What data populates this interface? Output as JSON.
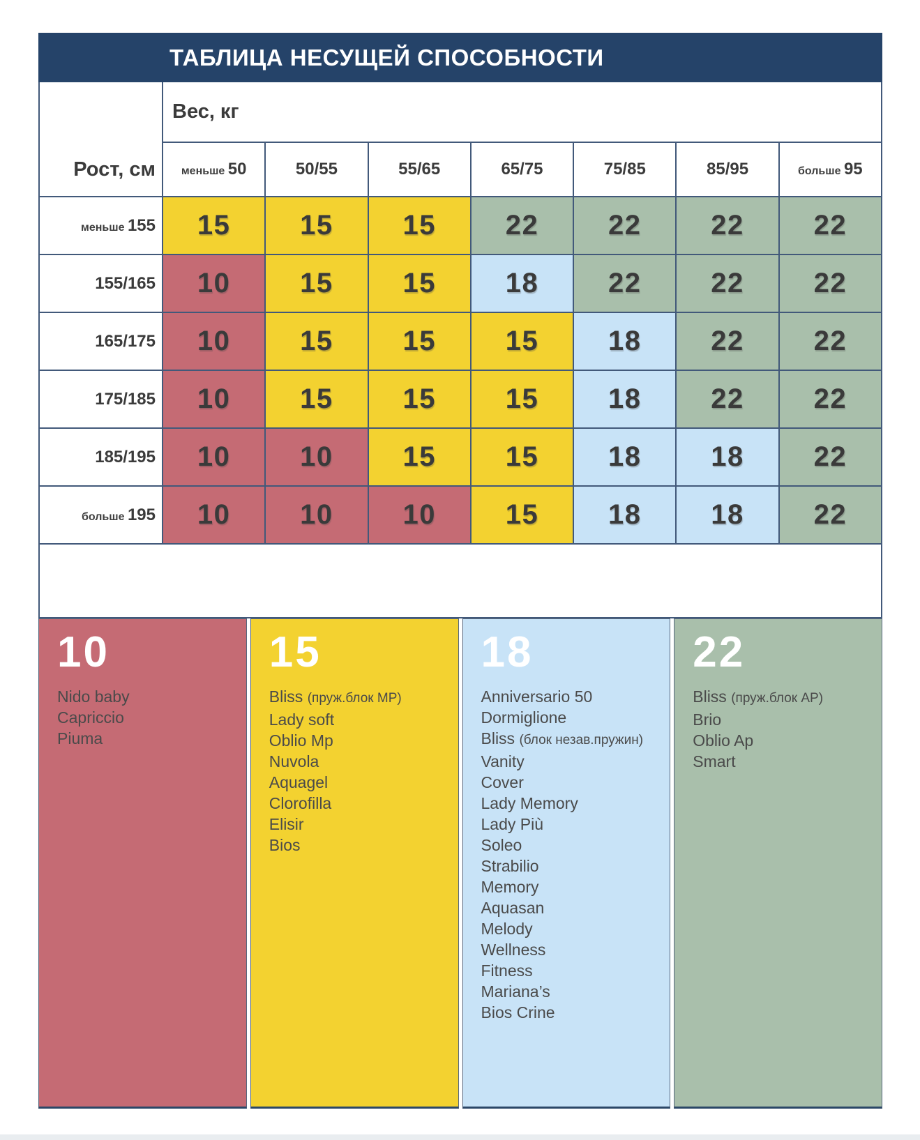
{
  "title": "ТАБЛИЦА НЕСУЩЕЙ СПОСОБНОСТИ",
  "weight_header": "Вес, кг",
  "height_header": "Рост, см",
  "weight_columns": [
    {
      "prefix": "меньше",
      "value": "50"
    },
    {
      "prefix": "",
      "value": "50/55"
    },
    {
      "prefix": "",
      "value": "55/65"
    },
    {
      "prefix": "",
      "value": "65/75"
    },
    {
      "prefix": "",
      "value": "75/85"
    },
    {
      "prefix": "",
      "value": "85/95"
    },
    {
      "prefix": "больше",
      "value": "95"
    }
  ],
  "height_rows": [
    {
      "prefix": "меньше",
      "value": "155",
      "cells": [
        "15",
        "15",
        "15",
        "22",
        "22",
        "22",
        "22"
      ]
    },
    {
      "prefix": "",
      "value": "155/165",
      "cells": [
        "10",
        "15",
        "15",
        "18",
        "22",
        "22",
        "22"
      ]
    },
    {
      "prefix": "",
      "value": "165/175",
      "cells": [
        "10",
        "15",
        "15",
        "15",
        "18",
        "22",
        "22"
      ]
    },
    {
      "prefix": "",
      "value": "175/185",
      "cells": [
        "10",
        "15",
        "15",
        "15",
        "18",
        "22",
        "22"
      ]
    },
    {
      "prefix": "",
      "value": "185/195",
      "cells": [
        "10",
        "10",
        "15",
        "15",
        "18",
        "18",
        "22"
      ]
    },
    {
      "prefix": "больше",
      "value": "195",
      "cells": [
        "10",
        "10",
        "10",
        "15",
        "18",
        "18",
        "22"
      ]
    }
  ],
  "value_colors": {
    "10": "#c56b74",
    "15": "#f3d230",
    "18": "#c8e3f7",
    "22": "#a9bfab"
  },
  "header_color": "#254369",
  "border_color": "#42597a",
  "legend": [
    {
      "value": "10",
      "color": "#c56b74",
      "items": [
        {
          "name": "Nido baby"
        },
        {
          "name": "Capriccio"
        },
        {
          "name": "Piuma"
        }
      ]
    },
    {
      "value": "15",
      "color": "#f3d230",
      "items": [
        {
          "name": "Bliss",
          "note": "(пруж.блок MP)"
        },
        {
          "name": "Lady soft"
        },
        {
          "name": "Oblio Mp"
        },
        {
          "name": "Nuvola"
        },
        {
          "name": "Aquagel"
        },
        {
          "name": "Clorofilla"
        },
        {
          "name": "Elisir"
        },
        {
          "name": "Bios"
        }
      ]
    },
    {
      "value": "18",
      "color": "#c8e3f7",
      "items": [
        {
          "name": "Anniversario 50"
        },
        {
          "name": "Dormiglione"
        },
        {
          "name": "Bliss",
          "note": "(блок незав.пружин)"
        },
        {
          "name": "Vanity"
        },
        {
          "name": "Cover"
        },
        {
          "name": "Lady Memory"
        },
        {
          "name": "Lady Più"
        },
        {
          "name": "Soleo"
        },
        {
          "name": "Strabilio"
        },
        {
          "name": "Memory"
        },
        {
          "name": "Aquasan"
        },
        {
          "name": "Melody"
        },
        {
          "name": "Wellness"
        },
        {
          "name": "Fitness"
        },
        {
          "name": "Mariana’s"
        },
        {
          "name": "Bios Crine"
        }
      ]
    },
    {
      "value": "22",
      "color": "#a9bfab",
      "items": [
        {
          "name": "Bliss",
          "note": "(пруж.блок AP)"
        },
        {
          "name": "Brio"
        },
        {
          "name": "Oblio Ap"
        },
        {
          "name": "Smart"
        }
      ]
    }
  ],
  "chart_data": {
    "type": "heatmap",
    "title": "ТАБЛИЦА НЕСУЩЕЙ СПОСОБНОСТИ",
    "xlabel": "Вес, кг",
    "ylabel": "Рост, см",
    "x_categories": [
      "меньше 50",
      "50/55",
      "55/65",
      "65/75",
      "75/85",
      "85/95",
      "больше 95"
    ],
    "y_categories": [
      "меньше 155",
      "155/165",
      "165/175",
      "175/185",
      "185/195",
      "больше 195"
    ],
    "values": [
      [
        15,
        15,
        15,
        22,
        22,
        22,
        22
      ],
      [
        10,
        15,
        15,
        18,
        22,
        22,
        22
      ],
      [
        10,
        15,
        15,
        15,
        18,
        22,
        22
      ],
      [
        10,
        15,
        15,
        15,
        18,
        22,
        22
      ],
      [
        10,
        10,
        15,
        15,
        18,
        18,
        22
      ],
      [
        10,
        10,
        10,
        15,
        18,
        18,
        22
      ]
    ],
    "value_colors": {
      "10": "#c56b74",
      "15": "#f3d230",
      "18": "#c8e3f7",
      "22": "#a9bfab"
    },
    "legend_groups": {
      "10": [
        "Nido baby",
        "Capriccio",
        "Piuma"
      ],
      "15": [
        "Bliss (пруж.блок MP)",
        "Lady soft",
        "Oblio Mp",
        "Nuvola",
        "Aquagel",
        "Clorofilla",
        "Elisir",
        "Bios"
      ],
      "18": [
        "Anniversario 50",
        "Dormiglione",
        "Bliss (блок незав.пружин)",
        "Vanity",
        "Cover",
        "Lady Memory",
        "Lady Più",
        "Soleo",
        "Strabilio",
        "Memory",
        "Aquasan",
        "Melody",
        "Wellness",
        "Fitness",
        "Mariana’s",
        "Bios Crine"
      ],
      "22": [
        "Bliss (пруж.блок AP)",
        "Brio",
        "Oblio Ap",
        "Smart"
      ]
    },
    "legend_position": "bottom",
    "grid": true
  }
}
